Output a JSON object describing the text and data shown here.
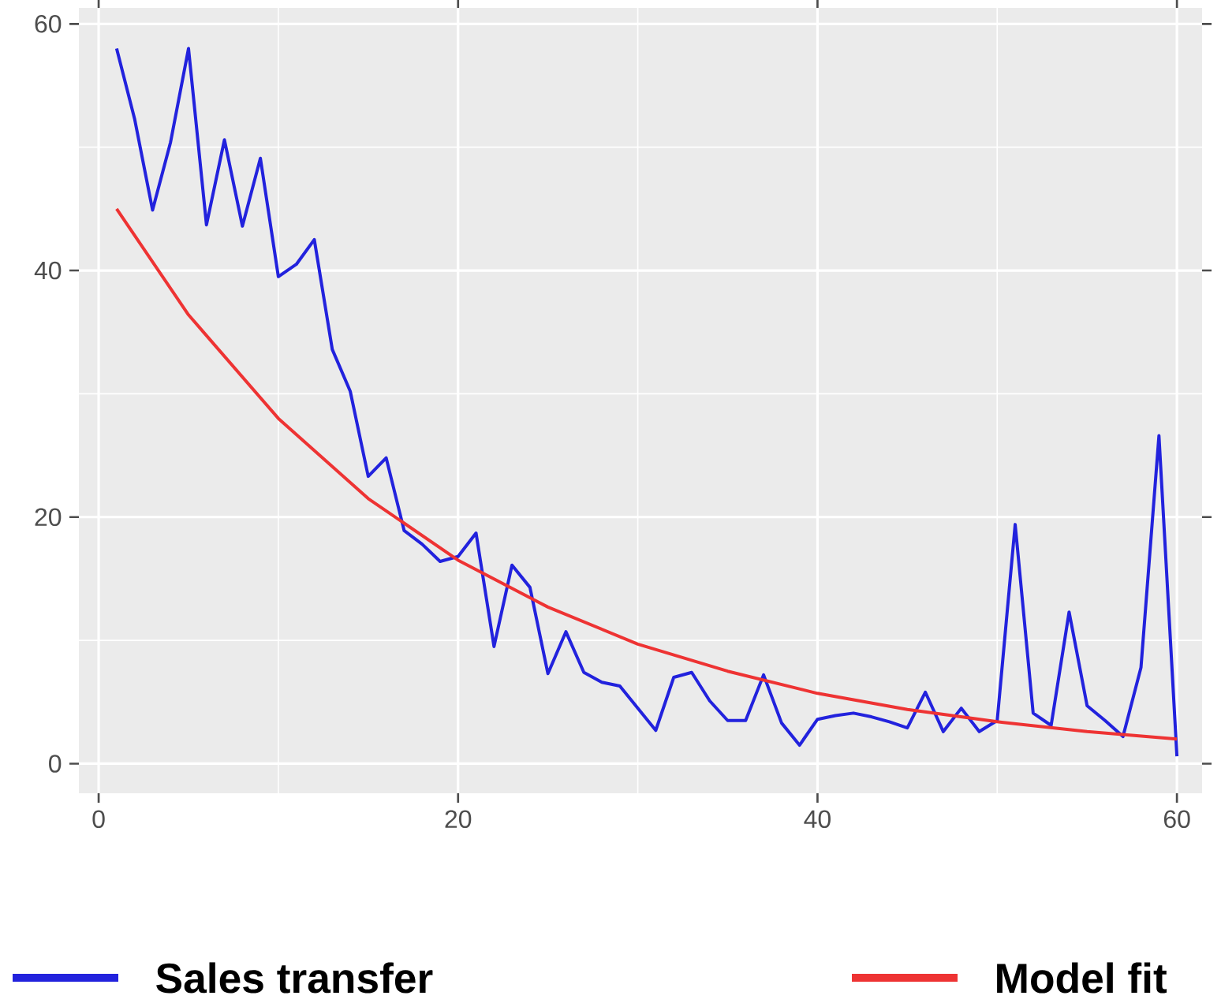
{
  "chart_data": {
    "type": "line",
    "xlim": [
      -1.1,
      61.4
    ],
    "ylim": [
      -2.4,
      61.3
    ],
    "xticks": [
      0,
      20,
      40,
      60
    ],
    "yticks": [
      0,
      20,
      40,
      60
    ],
    "grid": true,
    "legend": "bottom",
    "marker": "none",
    "line_style": "solid",
    "series": [
      {
        "name": "Sales transfer",
        "color": "#2222dd",
        "x": [
          1,
          2,
          3,
          4,
          5,
          6,
          7,
          8,
          9,
          10,
          11,
          12,
          13,
          14,
          15,
          16,
          17,
          18,
          19,
          20,
          21,
          22,
          23,
          24,
          25,
          26,
          27,
          28,
          29,
          30,
          31,
          32,
          33,
          34,
          35,
          36,
          37,
          38,
          39,
          40,
          41,
          42,
          43,
          44,
          45,
          46,
          47,
          48,
          49,
          50,
          51,
          52,
          53,
          54,
          55,
          56,
          57,
          58,
          59,
          60
        ],
        "values": [
          58,
          52.3,
          44.9,
          50.4,
          58,
          43.7,
          50.6,
          43.6,
          49.1,
          39.5,
          40.5,
          42.5,
          33.6,
          30.2,
          23.3,
          24.8,
          18.9,
          17.8,
          16.4,
          16.8,
          18.7,
          9.5,
          16.1,
          14.3,
          7.3,
          10.7,
          7.4,
          6.6,
          6.3,
          4.5,
          2.7,
          7.0,
          7.4,
          5.1,
          3.5,
          3.5,
          7.2,
          3.3,
          1.5,
          3.6,
          3.9,
          4.1,
          3.8,
          3.4,
          2.9,
          5.8,
          2.6,
          4.5,
          2.6,
          3.5,
          19.4,
          4.1,
          3.1,
          12.3,
          4.7,
          3.5,
          2.2,
          7.8,
          26.6,
          0.6
        ]
      },
      {
        "name": "Model fit",
        "color": "#ee3333",
        "x": [
          1,
          5,
          10,
          15,
          20,
          25,
          30,
          35,
          40,
          45,
          50,
          55,
          60
        ],
        "values": [
          45,
          36.4,
          28.0,
          21.5,
          16.5,
          12.7,
          9.7,
          7.5,
          5.7,
          4.4,
          3.4,
          2.6,
          2.0
        ]
      }
    ]
  }
}
